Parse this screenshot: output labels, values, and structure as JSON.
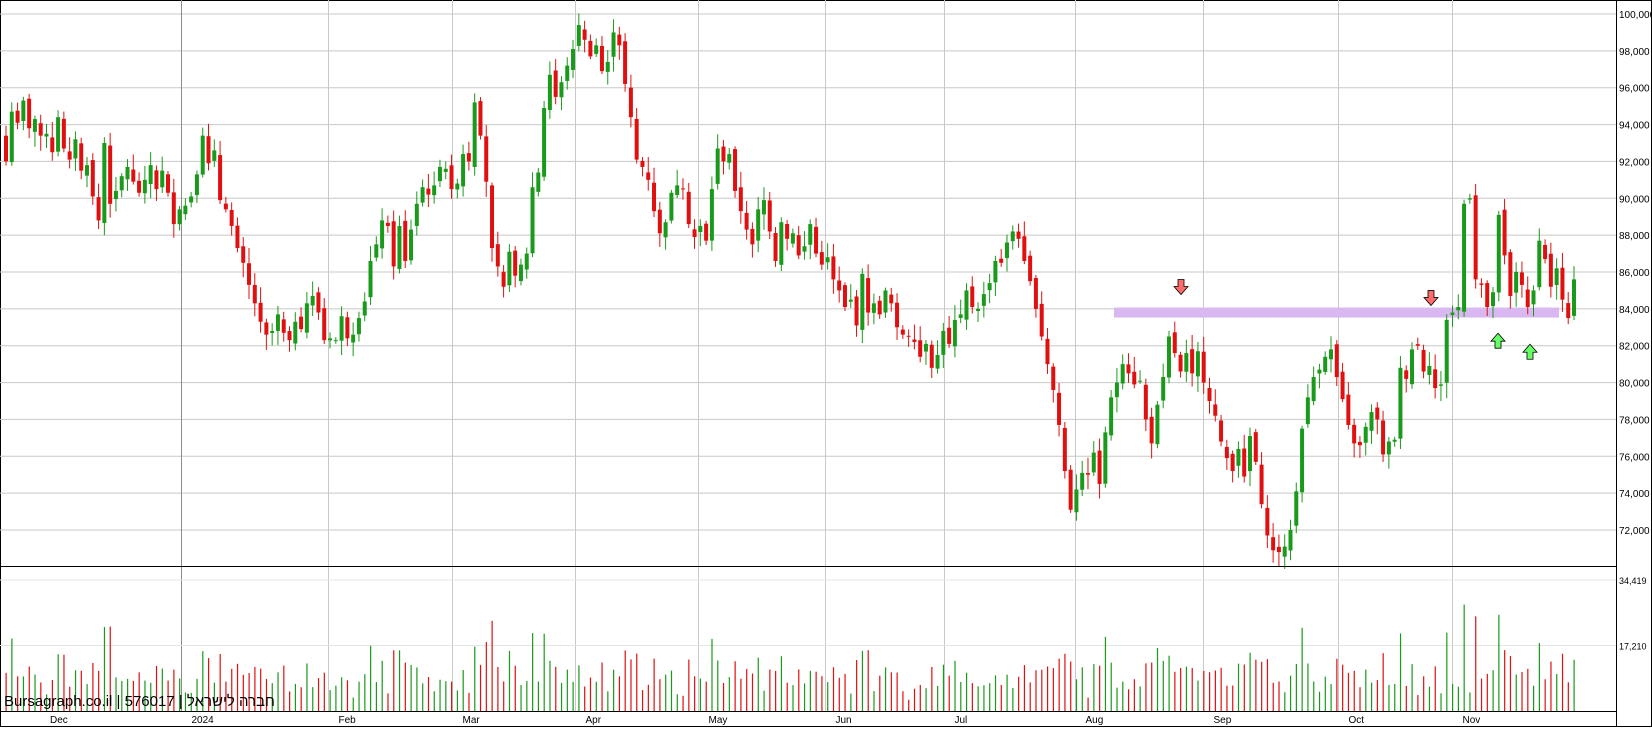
{
  "watermark": "Bursagraph.co.il | 576017 | חברה לישראל",
  "colors": {
    "up": "#1a9a1a",
    "down": "#e01010",
    "grid": "#c8c8c8",
    "resistance_band": "#d9b8f2",
    "arrow_down_fill": "#ff6a6a",
    "arrow_up_fill": "#66ff66"
  },
  "chart_data": [
    {
      "type": "candlestick",
      "panel": "price",
      "ylim": [
        70000,
        100000
      ],
      "y_ticks": [
        "100,000",
        "98,000",
        "96,000",
        "94,000",
        "92,000",
        "90,000",
        "88,000",
        "86,000",
        "84,000",
        "82,000",
        "80,000",
        "78,000",
        "76,000",
        "74,000",
        "72,000"
      ],
      "x_ticks": [
        "Dec",
        "2024",
        "Feb",
        "Mar",
        "Apr",
        "May",
        "Jun",
        "Jul",
        "Aug",
        "Sep",
        "Oct",
        "Nov"
      ],
      "grid": true,
      "annotations": {
        "resistance_band": {
          "value": 83800,
          "from_month": "Aug",
          "to_month": "Nov"
        },
        "down_arrows": [
          84400,
          83800
        ],
        "up_arrows": [
          82300,
          81700
        ]
      },
      "closes": [
        92000,
        94700,
        94100,
        95300,
        93800,
        94300,
        93400,
        93500,
        92500,
        94400,
        92700,
        92100,
        93200,
        91500,
        91800,
        90100,
        88800,
        93000,
        89700,
        90400,
        91200,
        91700,
        90900,
        90300,
        91000,
        91800,
        90500,
        91500,
        90300,
        88600,
        89400,
        89600,
        90100,
        91300,
        93400,
        91900,
        92600,
        89900,
        89400,
        88500,
        87300,
        86500,
        85300,
        84300,
        83300,
        82600,
        82800,
        83700,
        82700,
        82300,
        83300,
        82900,
        84300,
        84700,
        83800,
        82300,
        82400,
        82300,
        83600,
        82400,
        82600,
        83500,
        84400,
        86600,
        87500,
        88800,
        88500,
        86300,
        88500,
        86600,
        88300,
        89700,
        90600,
        90200,
        90700,
        91700,
        91600,
        90500,
        90800,
        92400,
        92000,
        95200,
        93400,
        90900,
        87300,
        86300,
        85200,
        87100,
        85800,
        86400,
        87000,
        90600,
        91400,
        94900,
        96700,
        95500,
        96300,
        97200,
        98100,
        99400,
        98600,
        97700,
        98300,
        96900,
        97400,
        99000,
        98300,
        96200,
        94400,
        92100,
        91700,
        91000,
        89300,
        88100,
        88700,
        90300,
        90700,
        90500,
        88600,
        87900,
        88500,
        87700,
        90500,
        92700,
        92000,
        92400,
        90400,
        89300,
        88300,
        87500,
        89400,
        89900,
        88200,
        86600,
        88700,
        87800,
        88100,
        86900,
        87400,
        88600,
        87000,
        86400,
        86800,
        85600,
        85000,
        84100,
        84500,
        83100,
        85900,
        83800,
        84300,
        83700,
        85000,
        84300,
        83000,
        82600,
        82500,
        82200,
        81400,
        82100,
        80800,
        81500,
        82800,
        82100,
        83400,
        83700,
        85000,
        84100,
        84000,
        84800,
        85400,
        86600,
        86500,
        87600,
        88200,
        87800,
        86600,
        85500,
        84000,
        82500,
        81000,
        79600,
        77700,
        75200,
        73100,
        74200,
        75100,
        75000,
        76200,
        74500,
        77300,
        79200,
        80000,
        81000,
        80500,
        79900,
        80100,
        78000,
        76700,
        78800,
        80300,
        82500,
        81600,
        80600,
        81600,
        80500,
        81700,
        80000,
        79000,
        78200,
        76800,
        75900,
        75200,
        76400,
        74900,
        77100,
        75700,
        73400,
        71700,
        70900,
        70800,
        71100,
        72000,
        74100,
        77500,
        79200,
        80300,
        80700,
        81400,
        81800,
        80300,
        79100,
        77700,
        76700,
        76600,
        77600,
        78400,
        78000,
        76100,
        76800,
        76900,
        80800,
        80200,
        81800,
        82000,
        80600,
        80900,
        79700,
        79900,
        83400,
        83800,
        84100,
        89700,
        90000,
        85600,
        85300,
        84100,
        84900,
        89100,
        86900,
        84700,
        86000,
        85300,
        84100,
        85000,
        87700,
        86700,
        85200,
        86200,
        84500,
        83500,
        85600
      ],
      "volume_panel": {
        "y_ticks": [
          "34,419",
          "17,210"
        ],
        "max": 34419
      }
    }
  ]
}
